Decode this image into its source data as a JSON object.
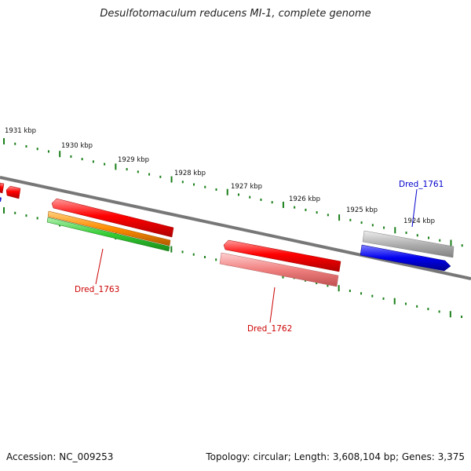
{
  "title": "Desulfotomaculum reducens MI-1, complete genome",
  "footer": {
    "accession": "Accession: NC_009253",
    "summary": "Topology: circular; Length: 3,608,104 bp; Genes: 3,375"
  },
  "scale_labels": [
    "1931 kbp",
    "1930 kbp",
    "1929 kbp",
    "1928 kbp",
    "1927 kbp",
    "1926 kbp",
    "1925 kbp",
    "1924 kbp"
  ],
  "gene_labels": {
    "dred_1761": "Dred_1761",
    "dred_1763": "Dred_1763",
    "dred_1762": "Dred_1762"
  },
  "colors": {
    "backbone": "#777777",
    "tick": "#1a7f1a",
    "red": "#ff0000",
    "red_light": "#f08080",
    "orange": "#ff8c00",
    "green": "#33cc33",
    "blue": "#0000ee",
    "gray": "#b0b0b0",
    "label_red": "#cc0000",
    "label_blue": "#0000cc"
  }
}
